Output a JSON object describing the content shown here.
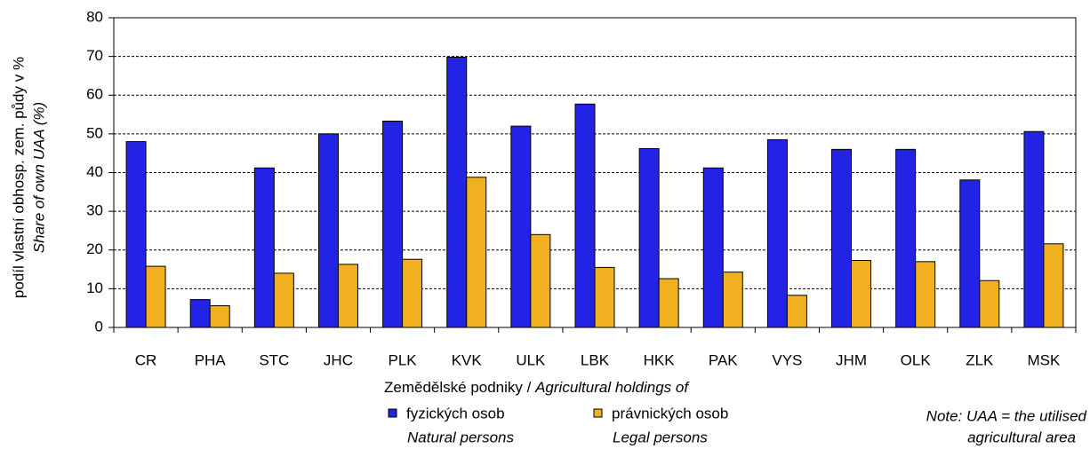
{
  "chart_data": {
    "type": "bar",
    "ylabel": [
      "podíl vlastní obhosp. zem. půdy v %",
      "Share of own UAA (%)"
    ],
    "xlabel": [
      "Zemědělské podniky / ",
      "Agricultural holdings of"
    ],
    "categories": [
      "CR",
      "PHA",
      "STC",
      "JHC",
      "PLK",
      "KVK",
      "ULK",
      "LBK",
      "HKK",
      "PAK",
      "VYS",
      "JHM",
      "OLK",
      "ZLK",
      "MSK"
    ],
    "series": [
      {
        "name": "fyzických osob",
        "name_en": "Natural persons",
        "color": "#2323e6",
        "values": [
          48,
          7.2,
          41.2,
          50,
          53.3,
          69.8,
          52,
          57.7,
          46.2,
          41.2,
          48.5,
          46,
          46,
          38.1,
          50.6
        ]
      },
      {
        "name": "právnických osob",
        "name_en": "Legal persons",
        "color": "#f0b020",
        "values": [
          15.8,
          5.6,
          14,
          16.3,
          17.6,
          38.8,
          24,
          15.5,
          12.6,
          14.3,
          8.3,
          17.3,
          17,
          12.1,
          21.6
        ]
      }
    ],
    "note": [
      "Note: UAA = the utilised",
      "agricultural area"
    ],
    "ylim": [
      0,
      80
    ],
    "yticks": [
      0,
      10,
      20,
      30,
      40,
      50,
      60,
      70,
      80
    ],
    "grid": true
  }
}
